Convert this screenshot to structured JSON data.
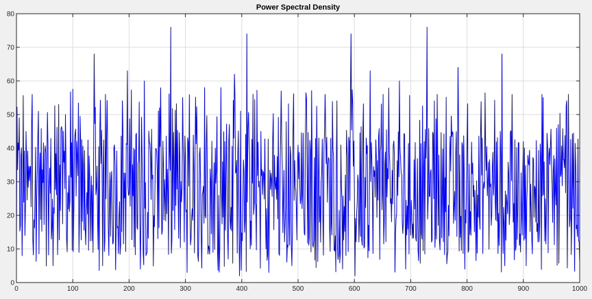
{
  "chart_data": {
    "type": "line",
    "title": "Power Spectral Density",
    "xlabel": "",
    "ylabel": "",
    "xlim": [
      0,
      1000
    ],
    "ylim": [
      0,
      80
    ],
    "xticks": [
      0,
      100,
      200,
      300,
      400,
      500,
      600,
      700,
      800,
      900,
      1000
    ],
    "yticks": [
      0,
      10,
      20,
      30,
      40,
      50,
      60,
      70,
      80
    ],
    "grid": true,
    "line_color": "#0000ff",
    "peaks": [
      {
        "x": 5,
        "y": 49
      },
      {
        "x": 28,
        "y": 56
      },
      {
        "x": 75,
        "y": 53
      },
      {
        "x": 87,
        "y": 50
      },
      {
        "x": 138,
        "y": 68
      },
      {
        "x": 158,
        "y": 56
      },
      {
        "x": 197,
        "y": 63
      },
      {
        "x": 227,
        "y": 60
      },
      {
        "x": 274,
        "y": 76
      },
      {
        "x": 295,
        "y": 55
      },
      {
        "x": 334,
        "y": 58
      },
      {
        "x": 363,
        "y": 58
      },
      {
        "x": 387,
        "y": 62
      },
      {
        "x": 409,
        "y": 74
      },
      {
        "x": 470,
        "y": 57
      },
      {
        "x": 548,
        "y": 56
      },
      {
        "x": 594,
        "y": 74
      },
      {
        "x": 628,
        "y": 63
      },
      {
        "x": 651,
        "y": 56
      },
      {
        "x": 680,
        "y": 60
      },
      {
        "x": 729,
        "y": 76
      },
      {
        "x": 747,
        "y": 56
      },
      {
        "x": 784,
        "y": 64
      },
      {
        "x": 862,
        "y": 68
      },
      {
        "x": 933,
        "y": 56
      },
      {
        "x": 980,
        "y": 56
      }
    ],
    "troughs": [
      {
        "x": 10,
        "y": 8
      },
      {
        "x": 65,
        "y": 5
      },
      {
        "x": 153,
        "y": 5
      },
      {
        "x": 220,
        "y": 4
      },
      {
        "x": 303,
        "y": 3
      },
      {
        "x": 396,
        "y": 2
      },
      {
        "x": 448,
        "y": 3
      },
      {
        "x": 489,
        "y": 5
      },
      {
        "x": 601,
        "y": 2
      },
      {
        "x": 691,
        "y": 4
      },
      {
        "x": 796,
        "y": 4
      },
      {
        "x": 867,
        "y": 5
      },
      {
        "x": 905,
        "y": 5
      }
    ],
    "baseline_mean": 27,
    "baseline_range": [
      8,
      46
    ],
    "n_points": 1000
  }
}
